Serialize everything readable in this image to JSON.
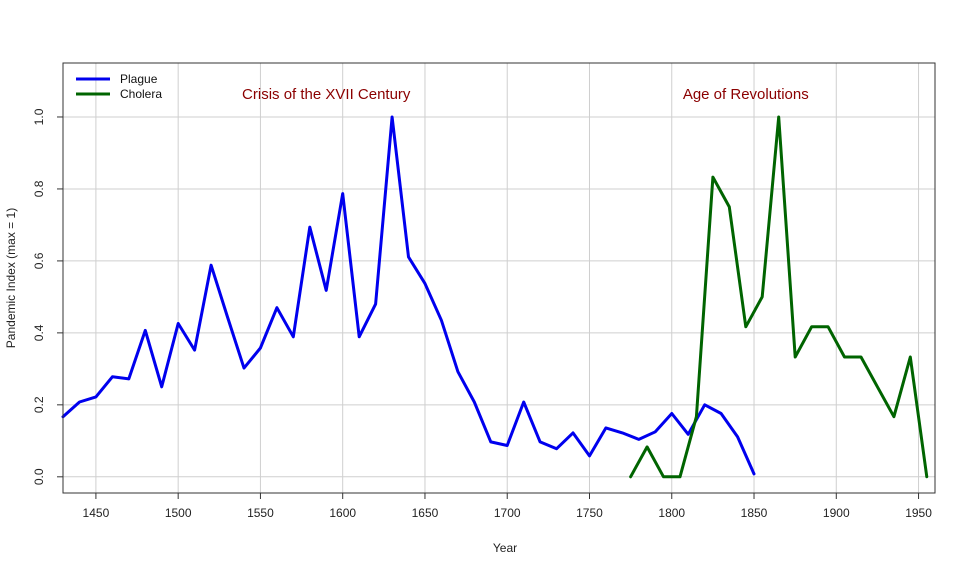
{
  "chart_data": {
    "type": "line",
    "title": "",
    "xlabel": "Year",
    "ylabel": "Pandemic Index (max = 1)",
    "xlim": [
      1430,
      1960
    ],
    "ylim": [
      -0.045,
      1.15
    ],
    "x_ticks": [
      1450,
      1500,
      1550,
      1600,
      1650,
      1700,
      1750,
      1800,
      1850,
      1900,
      1950
    ],
    "y_ticks": [
      0.0,
      0.2,
      0.4,
      0.6,
      0.8,
      1.0
    ],
    "x_tick_labels": [
      "1450",
      "1500",
      "1550",
      "1600",
      "1650",
      "1700",
      "1750",
      "1800",
      "1850",
      "1900",
      "1950"
    ],
    "y_tick_labels": [
      "0.0",
      "0.2",
      "0.4",
      "0.6",
      "0.8",
      "1.0"
    ],
    "grid": true,
    "legend_position": "top-left",
    "series": [
      {
        "name": "Plague",
        "color": "#0000ee",
        "x": [
          1430,
          1440,
          1450,
          1460,
          1470,
          1480,
          1490,
          1500,
          1510,
          1520,
          1530,
          1540,
          1550,
          1560,
          1570,
          1580,
          1590,
          1600,
          1610,
          1620,
          1630,
          1640,
          1650,
          1660,
          1670,
          1680,
          1690,
          1700,
          1710,
          1720,
          1730,
          1740,
          1750,
          1760,
          1770,
          1780,
          1790,
          1800,
          1810,
          1820,
          1830,
          1840,
          1850
        ],
        "y": [
          0.167,
          0.208,
          0.222,
          0.278,
          0.272,
          0.407,
          0.25,
          0.426,
          0.352,
          0.588,
          0.444,
          0.302,
          0.358,
          0.47,
          0.389,
          0.694,
          0.518,
          0.787,
          0.389,
          0.48,
          1.0,
          0.611,
          0.537,
          0.435,
          0.292,
          0.208,
          0.097,
          0.087,
          0.208,
          0.097,
          0.078,
          0.122,
          0.058,
          0.136,
          0.122,
          0.104,
          0.125,
          0.176,
          0.118,
          0.2,
          0.176,
          0.111,
          0.008
        ]
      },
      {
        "name": "Cholera",
        "color": "#006400",
        "x": [
          1775,
          1785,
          1795,
          1805,
          1815,
          1825,
          1835,
          1845,
          1855,
          1865,
          1875,
          1885,
          1895,
          1905,
          1915,
          1925,
          1935,
          1945,
          1955
        ],
        "y": [
          0.0,
          0.083,
          0.0,
          0.0,
          0.167,
          0.833,
          0.75,
          0.417,
          0.5,
          1.0,
          0.333,
          0.417,
          0.417,
          0.333,
          0.333,
          0.25,
          0.167,
          0.333,
          0.0
        ]
      }
    ],
    "annotations": [
      {
        "text": "Crisis of the XVII Century",
        "x": 1590,
        "y": 1.05,
        "color": "#8b0000"
      },
      {
        "text": "Age of Revolutions",
        "x": 1845,
        "y": 1.05,
        "color": "#8b0000"
      }
    ]
  }
}
